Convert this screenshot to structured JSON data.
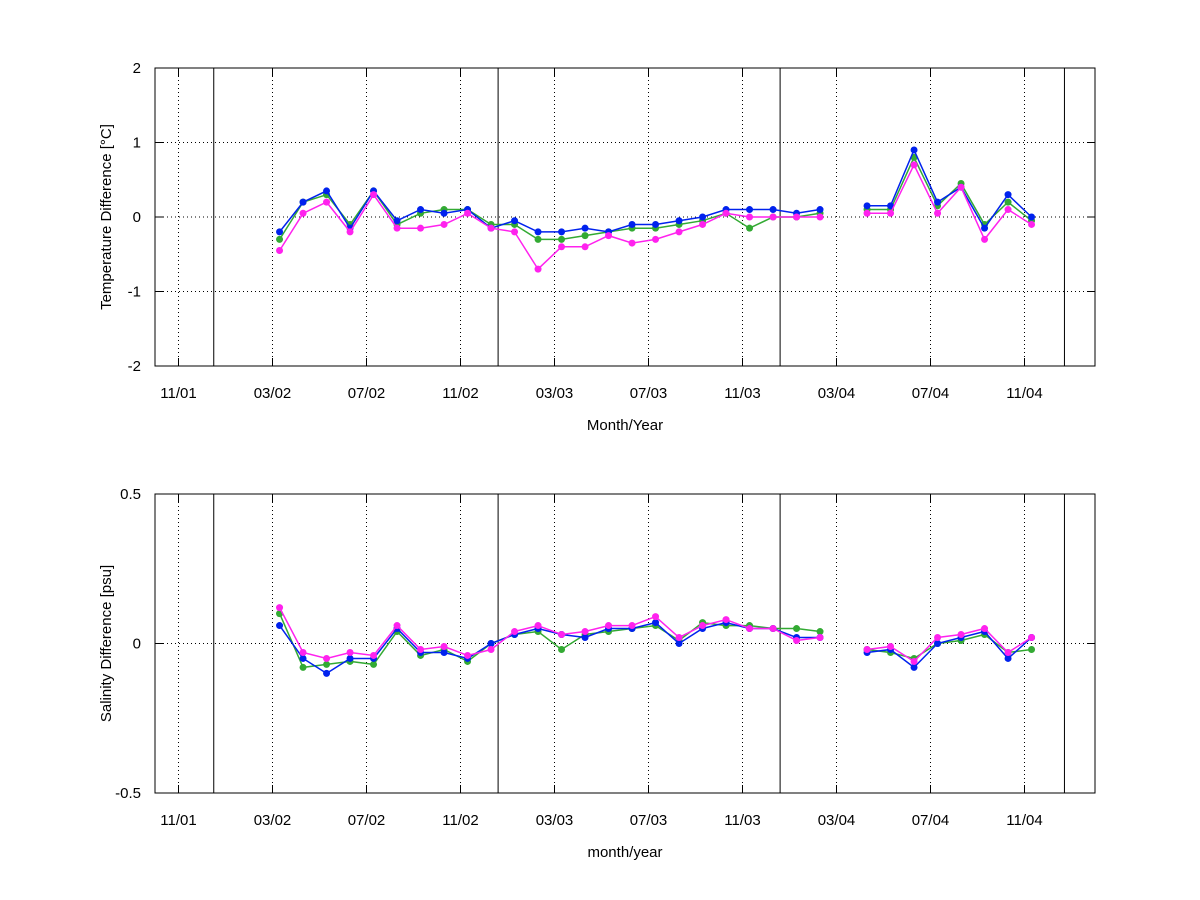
{
  "chart_data": [
    {
      "type": "line",
      "xlabel": "Month/Year",
      "ylabel": "Temperature Difference [°C]",
      "x": [
        14.3,
        15.3,
        16.3,
        17.3,
        18.3,
        19.3,
        20.3,
        21.3,
        22.3,
        23.3,
        24.3,
        25.3,
        26.3,
        27.3,
        28.3,
        29.3,
        30.3,
        31.3,
        32.3,
        33.3,
        34.3,
        35.3,
        36.3,
        37.3,
        38.3,
        39.3,
        40.3,
        41.3,
        42.3,
        43.3,
        44.3,
        45.3,
        46.3
      ],
      "xlim": [
        9,
        49
      ],
      "xticks": [
        {
          "value": 10,
          "label": "11/01"
        },
        {
          "value": 14,
          "label": "03/02"
        },
        {
          "value": 18,
          "label": "07/02"
        },
        {
          "value": 22,
          "label": "11/02"
        },
        {
          "value": 26,
          "label": "03/03"
        },
        {
          "value": 30,
          "label": "07/03"
        },
        {
          "value": 34,
          "label": "11/03"
        },
        {
          "value": 38,
          "label": "03/04"
        },
        {
          "value": 42,
          "label": "07/04"
        },
        {
          "value": 46,
          "label": "11/04"
        }
      ],
      "vlines": [
        11.5,
        23.6,
        35.6,
        47.7
      ],
      "ylim": [
        -2,
        2
      ],
      "yticks": [
        -2,
        -1,
        0,
        1,
        2
      ],
      "grid": true,
      "series": [
        {
          "color": "#33aa33",
          "values": [
            -0.3,
            0.2,
            0.3,
            -0.1,
            0.35,
            -0.1,
            0.05,
            0.1,
            0.1,
            -0.1,
            -0.1,
            -0.3,
            -0.3,
            -0.25,
            -0.2,
            -0.15,
            -0.15,
            -0.1,
            -0.05,
            0.05,
            -0.15,
            0.0,
            0.0,
            0.05,
            null,
            0.1,
            0.1,
            0.8,
            0.15,
            0.45,
            -0.1,
            0.2,
            -0.05
          ]
        },
        {
          "color": "#0022ee",
          "values": [
            -0.2,
            0.2,
            0.35,
            -0.15,
            0.35,
            -0.05,
            0.1,
            0.05,
            0.1,
            -0.15,
            -0.05,
            -0.2,
            -0.2,
            -0.15,
            -0.2,
            -0.1,
            -0.1,
            -0.05,
            0.0,
            0.1,
            0.1,
            0.1,
            0.05,
            0.1,
            null,
            0.15,
            0.15,
            0.9,
            0.2,
            0.4,
            -0.15,
            0.3,
            0.0
          ]
        },
        {
          "color": "#ff22ee",
          "values": [
            -0.45,
            0.05,
            0.2,
            -0.2,
            0.3,
            -0.15,
            -0.15,
            -0.1,
            0.05,
            -0.15,
            -0.2,
            -0.7,
            -0.4,
            -0.4,
            -0.25,
            -0.35,
            -0.3,
            -0.2,
            -0.1,
            0.05,
            0.0,
            0.0,
            0.0,
            0.0,
            null,
            0.05,
            0.05,
            0.7,
            0.05,
            0.4,
            -0.3,
            0.1,
            -0.1
          ]
        }
      ]
    },
    {
      "type": "line",
      "xlabel": "month/year",
      "ylabel": "Salinity Difference [psu]",
      "x": [
        14.3,
        15.3,
        16.3,
        17.3,
        18.3,
        19.3,
        20.3,
        21.3,
        22.3,
        23.3,
        24.3,
        25.3,
        26.3,
        27.3,
        28.3,
        29.3,
        30.3,
        31.3,
        32.3,
        33.3,
        34.3,
        35.3,
        36.3,
        37.3,
        38.3,
        39.3,
        40.3,
        41.3,
        42.3,
        43.3,
        44.3,
        45.3,
        46.3
      ],
      "xlim": [
        9,
        49
      ],
      "xticks": [
        {
          "value": 10,
          "label": "11/01"
        },
        {
          "value": 14,
          "label": "03/02"
        },
        {
          "value": 18,
          "label": "07/02"
        },
        {
          "value": 22,
          "label": "11/02"
        },
        {
          "value": 26,
          "label": "03/03"
        },
        {
          "value": 30,
          "label": "07/03"
        },
        {
          "value": 34,
          "label": "11/03"
        },
        {
          "value": 38,
          "label": "03/04"
        },
        {
          "value": 42,
          "label": "07/04"
        },
        {
          "value": 46,
          "label": "11/04"
        }
      ],
      "vlines": [
        11.5,
        23.6,
        35.6,
        47.7
      ],
      "ylim": [
        -0.5,
        0.5
      ],
      "yticks": [
        -0.5,
        0,
        0.5
      ],
      "grid": true,
      "series": [
        {
          "color": "#33aa33",
          "values": [
            0.1,
            -0.08,
            -0.07,
            -0.06,
            -0.07,
            0.04,
            -0.04,
            -0.02,
            -0.06,
            0.0,
            0.03,
            0.04,
            -0.02,
            0.03,
            0.04,
            0.05,
            0.06,
            0.01,
            0.07,
            0.06,
            0.06,
            0.05,
            0.05,
            0.04,
            null,
            -0.02,
            -0.03,
            -0.05,
            0.0,
            0.01,
            0.03,
            -0.03,
            -0.02
          ]
        },
        {
          "color": "#0022ee",
          "values": [
            0.06,
            -0.05,
            -0.1,
            -0.05,
            -0.05,
            0.05,
            -0.03,
            -0.03,
            -0.05,
            0.0,
            0.03,
            0.05,
            0.03,
            0.02,
            0.05,
            0.05,
            0.07,
            0.0,
            0.05,
            0.07,
            0.05,
            0.05,
            0.02,
            0.02,
            null,
            -0.03,
            -0.02,
            -0.08,
            0.0,
            0.02,
            0.04,
            -0.05,
            0.02
          ]
        },
        {
          "color": "#ff22ee",
          "values": [
            0.12,
            -0.03,
            -0.05,
            -0.03,
            -0.04,
            0.06,
            -0.02,
            -0.01,
            -0.04,
            -0.02,
            0.04,
            0.06,
            0.03,
            0.04,
            0.06,
            0.06,
            0.09,
            0.02,
            0.06,
            0.08,
            0.05,
            0.05,
            0.01,
            0.02,
            null,
            -0.02,
            -0.01,
            -0.06,
            0.02,
            0.03,
            0.05,
            -0.03,
            0.02
          ]
        }
      ]
    }
  ]
}
